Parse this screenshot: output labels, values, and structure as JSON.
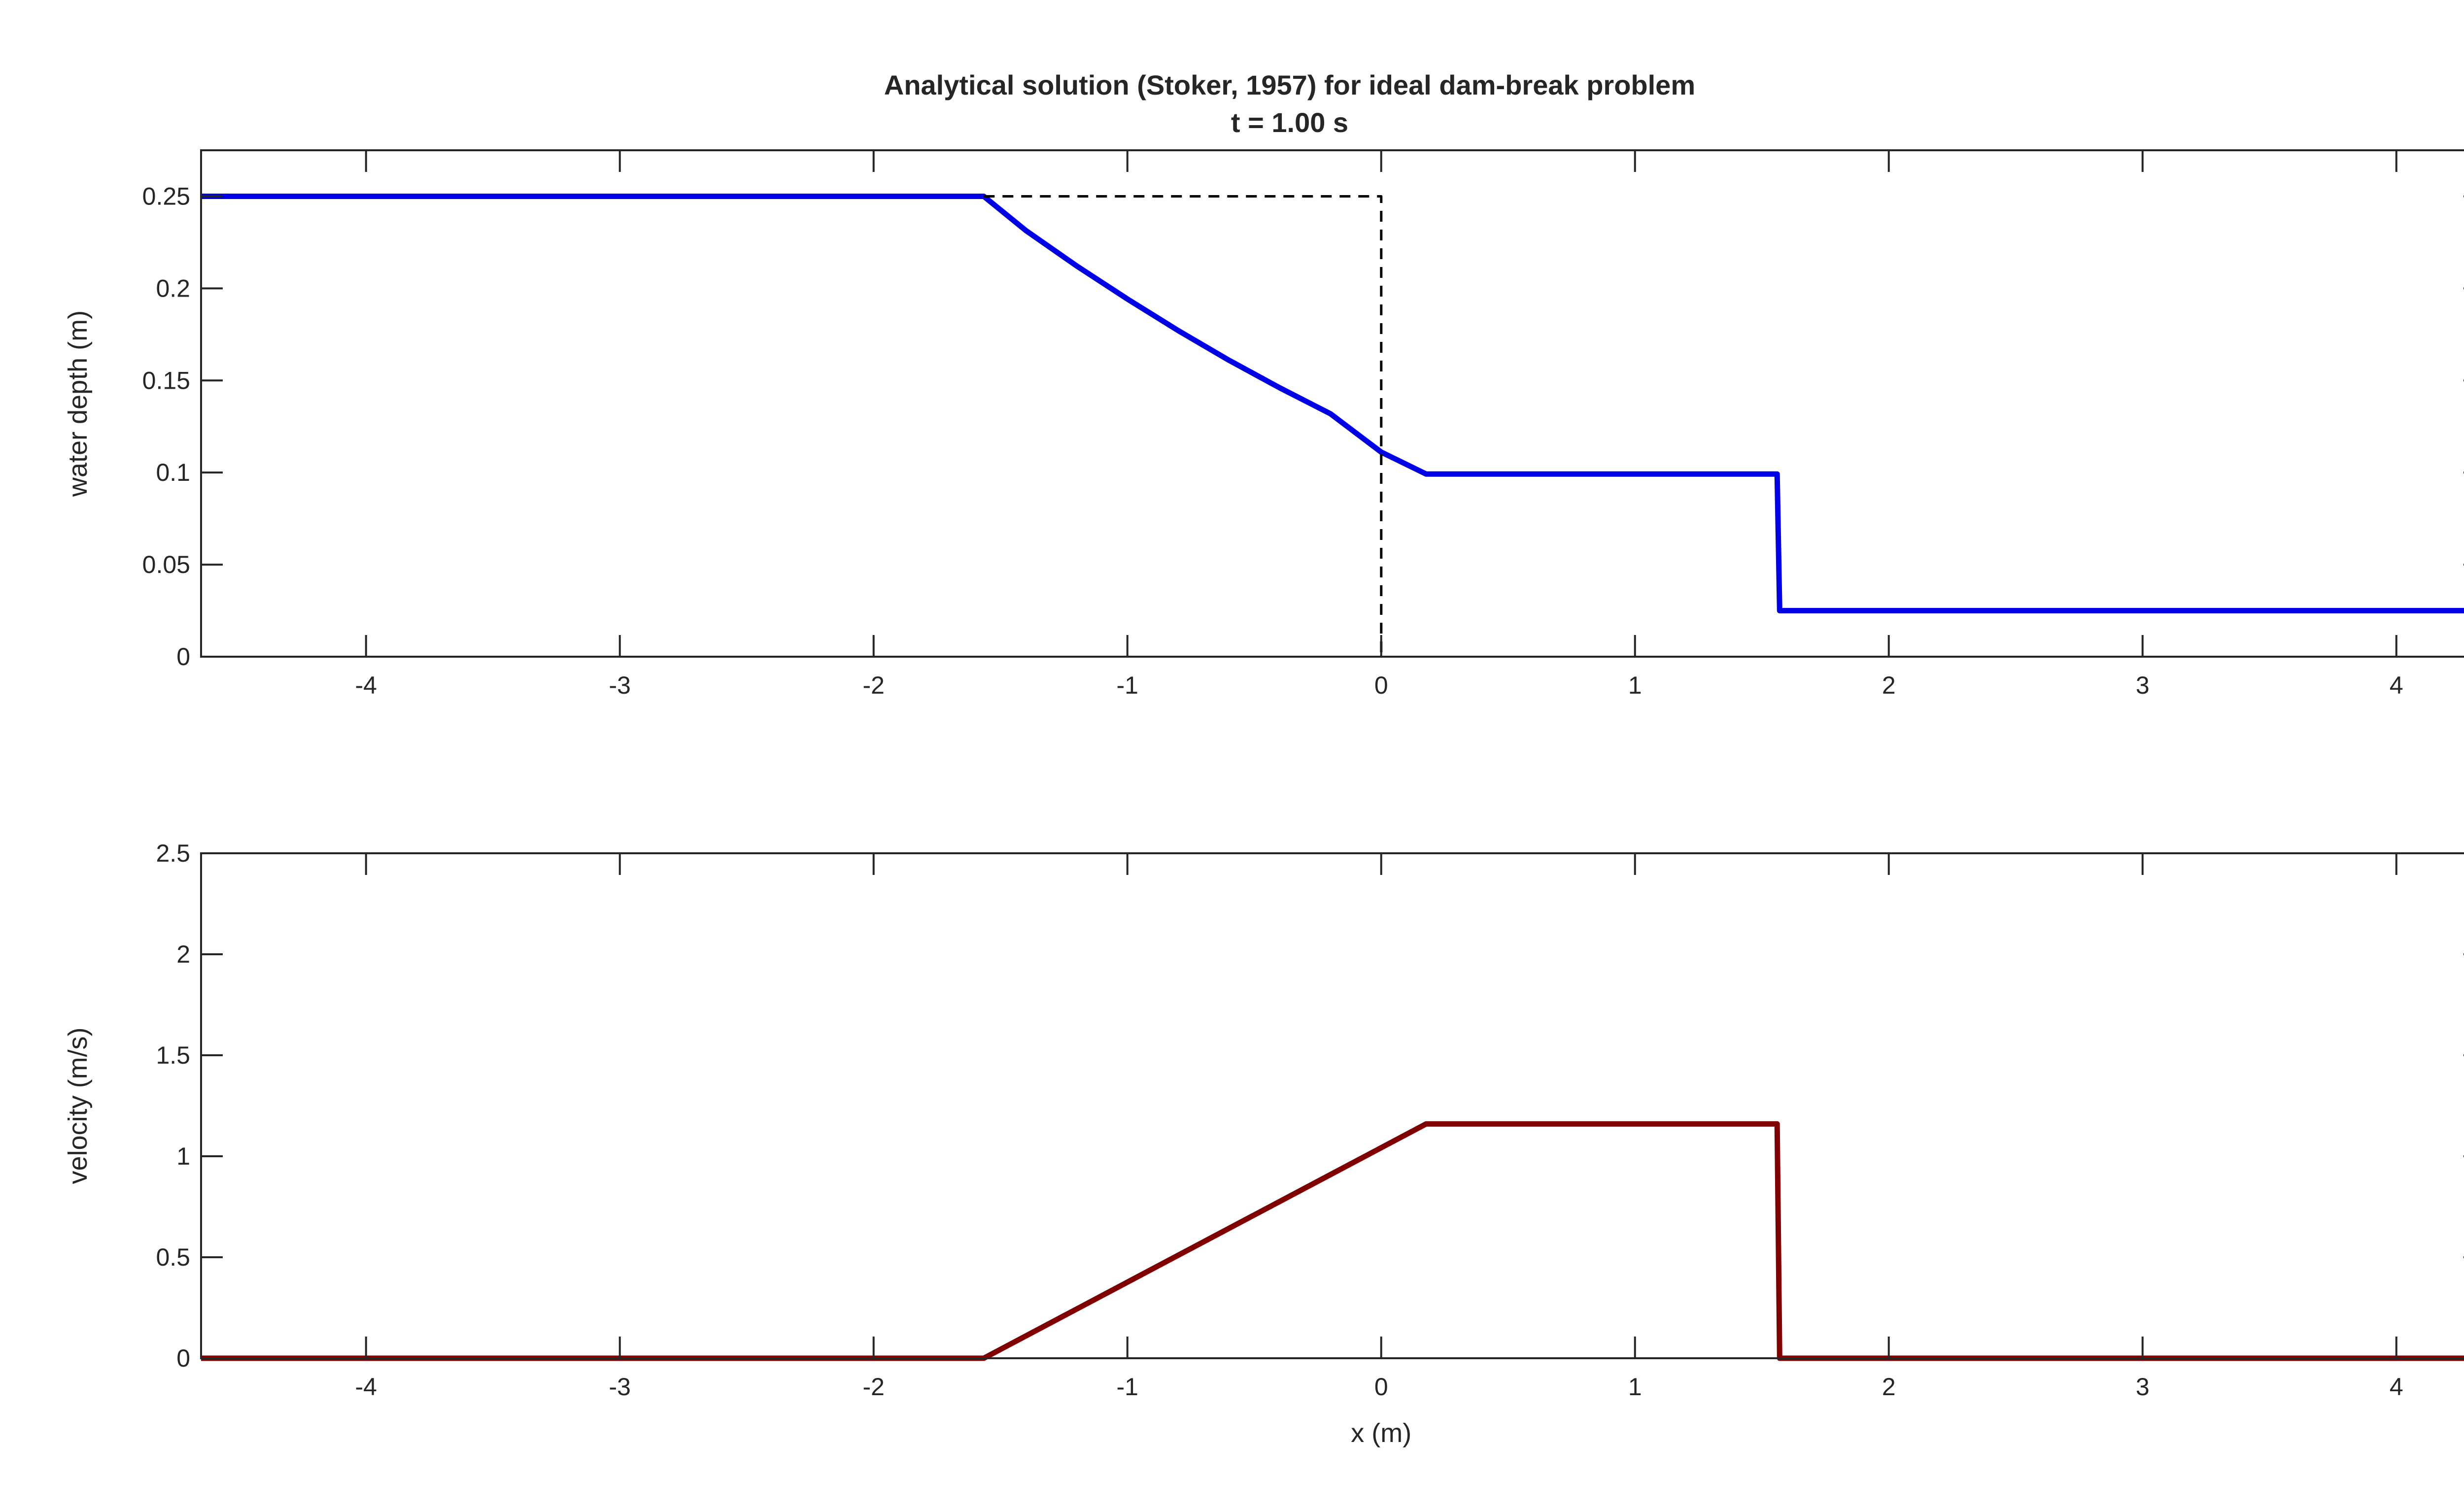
{
  "title": "Analytical solution (Stoker, 1957) for ideal dam-break problem",
  "subtitle": "t = 1.00 s",
  "chart_data": [
    {
      "type": "line",
      "ylabel": "water depth (m)",
      "xlabel": "",
      "xlim": [
        -4.65,
        4.35
      ],
      "ylim": [
        0,
        0.275
      ],
      "xticks": [
        "-4",
        "-3",
        "-2",
        "-1",
        "0",
        "1",
        "2",
        "3",
        "4"
      ],
      "yticks": [
        "0",
        "0.05",
        "0.1",
        "0.15",
        "0.2",
        "0.25"
      ],
      "series": [
        {
          "color": "#0000e6",
          "style": "solid",
          "x": [
            -4.65,
            -1.566,
            -1.4,
            -1.2,
            -1.0,
            -0.8,
            -0.6,
            -0.4,
            -0.2,
            0.0,
            0.177,
            1.56,
            1.57,
            4.35
          ],
          "y": [
            0.25,
            0.25,
            0.2314,
            0.2122,
            0.1942,
            0.1771,
            0.161,
            0.146,
            0.1319,
            0.1111,
            0.0992,
            0.0992,
            0.025,
            0.025
          ]
        },
        {
          "color": "#000000",
          "style": "dashed",
          "x": [
            -1.566,
            0.0,
            0.0
          ],
          "y": [
            0.25,
            0.25,
            0.0
          ]
        }
      ]
    },
    {
      "type": "line",
      "ylabel": "velocity (m/s)",
      "xlabel": "x (m)",
      "xlim": [
        -4.65,
        4.35
      ],
      "ylim": [
        0,
        2.5
      ],
      "xticks": [
        "-4",
        "-3",
        "-2",
        "-1",
        "0",
        "1",
        "2",
        "3",
        "4"
      ],
      "yticks": [
        "0",
        "0.5",
        "1",
        "1.5",
        "2",
        "2.5"
      ],
      "series": [
        {
          "color": "#800000",
          "style": "solid",
          "x": [
            -4.65,
            -1.566,
            0.177,
            1.56,
            1.57,
            4.35
          ],
          "y": [
            0.0,
            0.0,
            1.16,
            1.16,
            0.0,
            0.0
          ]
        }
      ]
    }
  ]
}
